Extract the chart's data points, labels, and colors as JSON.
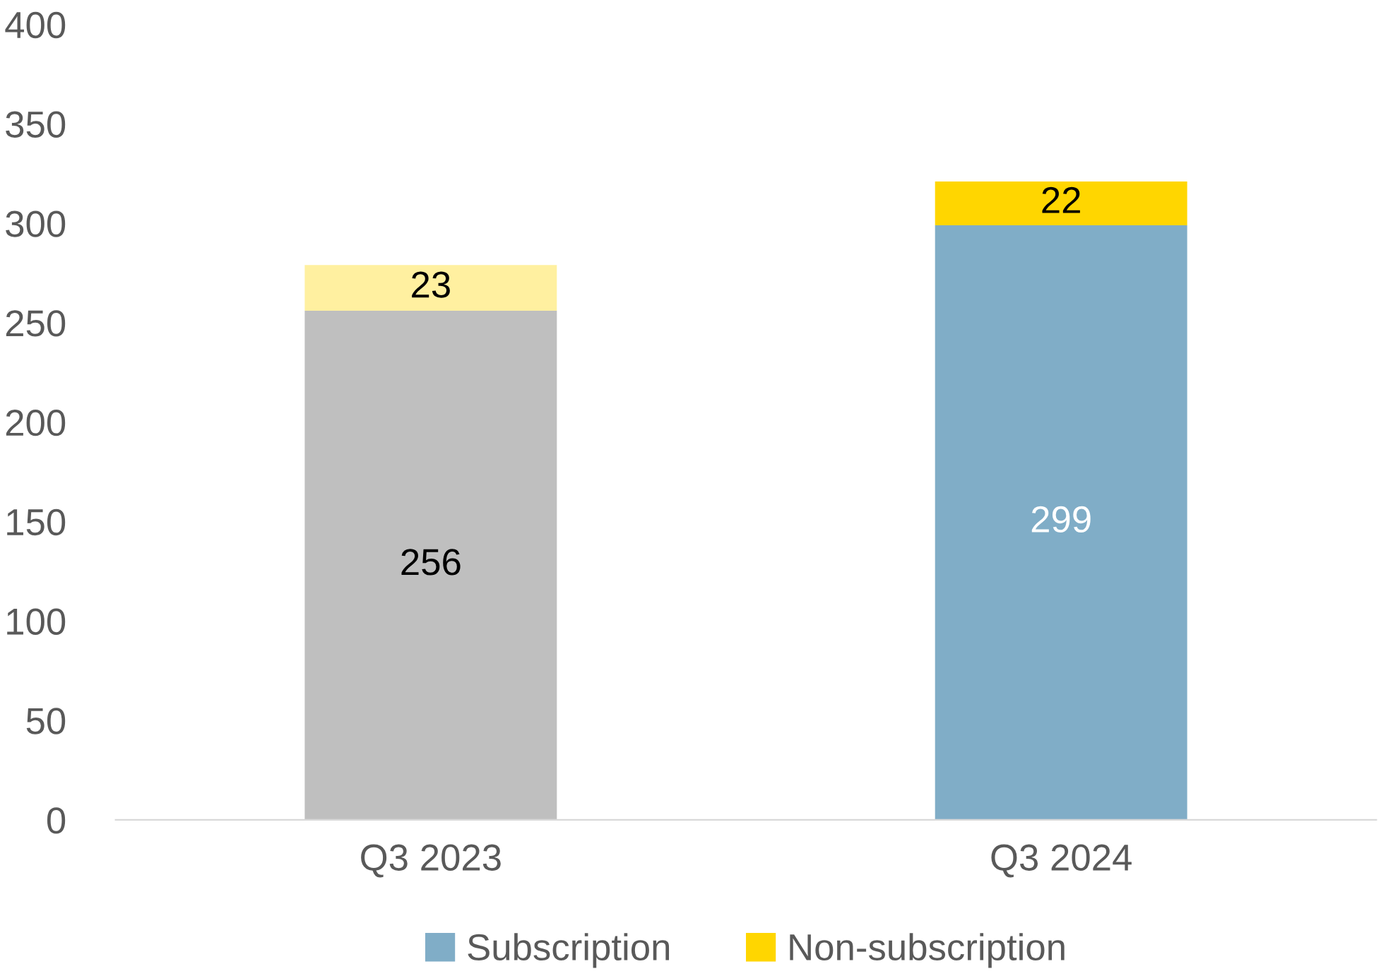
{
  "chart_data": {
    "type": "bar",
    "stacked": true,
    "categories": [
      "Q3 2023",
      "Q3 2024"
    ],
    "series": [
      {
        "name": "Subscription",
        "color": "#80adc7",
        "colors": [
          "#bfbfbf",
          "#80adc7"
        ],
        "values": [
          256,
          299
        ]
      },
      {
        "name": "Non-subscription",
        "color": "#ffd600",
        "colors": [
          "#fff0a0",
          "#ffd600"
        ],
        "values": [
          23,
          22
        ]
      }
    ],
    "ylim": [
      0,
      400
    ],
    "yticks": [
      0,
      50,
      100,
      150,
      200,
      250,
      300,
      350,
      400
    ],
    "data_labels": true,
    "legend": "bottom",
    "grid": false
  }
}
